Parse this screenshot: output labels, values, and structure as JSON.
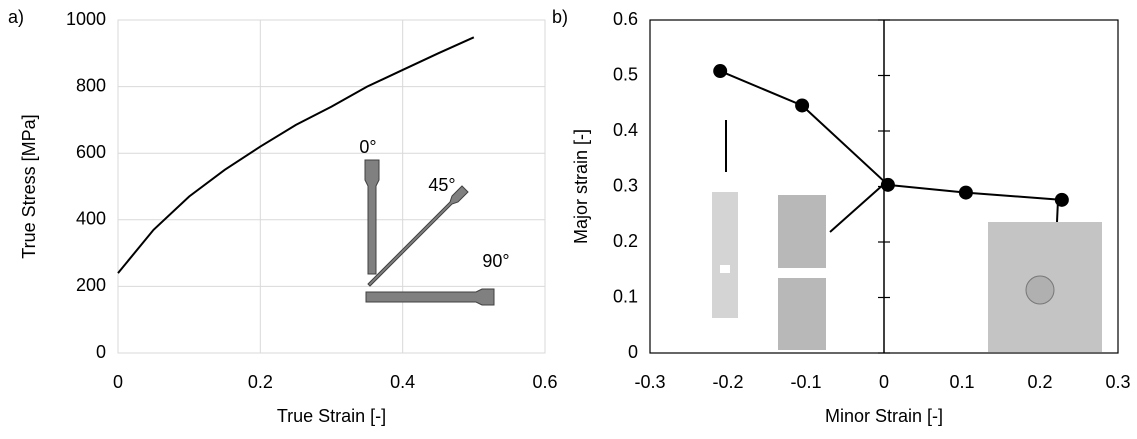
{
  "chart_data": [
    {
      "type": "line",
      "label": "a)",
      "xlabel": "True Strain [-]",
      "ylabel": "True Stress [MPa]",
      "x": [
        0,
        0.05,
        0.1,
        0.15,
        0.2,
        0.25,
        0.3,
        0.35,
        0.4,
        0.45,
        0.5
      ],
      "values": [
        240,
        370,
        470,
        550,
        620,
        685,
        740,
        800,
        850,
        900,
        948
      ],
      "color": "#000000",
      "xlim": [
        0,
        0.6
      ],
      "ylim": [
        0,
        1000
      ],
      "xticks": [
        0,
        0.2,
        0.4,
        0.6
      ],
      "yticks": [
        0,
        200,
        400,
        600,
        800,
        1000
      ],
      "grid": true,
      "annotations": [
        "0°",
        "45°",
        "90°"
      ]
    },
    {
      "type": "line",
      "label": "b)",
      "xlabel": "Minor Strain [-]",
      "ylabel": "Major strain [-]",
      "x": [
        -0.21,
        -0.105,
        0.005,
        0.105,
        0.228
      ],
      "values": [
        0.508,
        0.446,
        0.303,
        0.289,
        0.276
      ],
      "color": "#000000",
      "markers": true,
      "xlim": [
        -0.3,
        0.3
      ],
      "ylim": [
        0,
        0.6
      ],
      "xticks": [
        -0.3,
        -0.2,
        -0.1,
        0,
        0.1,
        0.2,
        0.3
      ],
      "yticks": [
        0,
        0.1,
        0.2,
        0.3,
        0.4,
        0.5,
        0.6
      ],
      "grid": false
    }
  ]
}
